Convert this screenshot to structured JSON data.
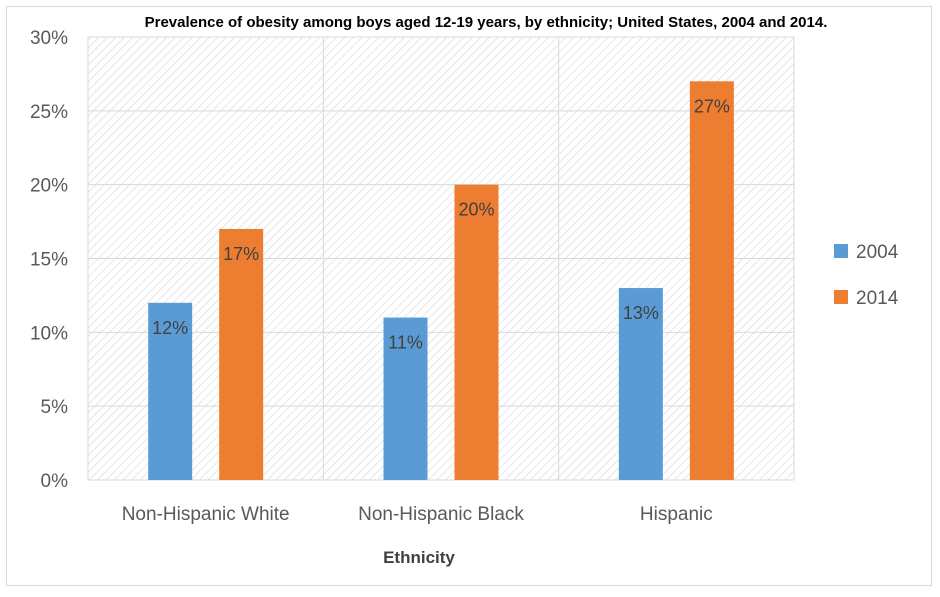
{
  "chart_data": {
    "type": "bar",
    "title": "Prevalence of obesity among boys aged 12-19 years, by ethnicity; United States, 2004 and 2014.",
    "xlabel": "Ethnicity",
    "ylabel": "",
    "categories": [
      "Non-Hispanic White",
      "Non-Hispanic Black",
      "Hispanic"
    ],
    "series": [
      {
        "name": "2004",
        "values": [
          12,
          11,
          13
        ],
        "labels": [
          "12%",
          "11%",
          "13%"
        ],
        "color": "#5b9bd5"
      },
      {
        "name": "2014",
        "values": [
          17,
          20,
          27
        ],
        "labels": [
          "17%",
          "20%",
          "27%"
        ],
        "color": "#ed7d31"
      }
    ],
    "ylim": [
      0,
      30
    ],
    "yticks": [
      0,
      5,
      10,
      15,
      20,
      25,
      30
    ],
    "ytick_labels": [
      "0%",
      "5%",
      "10%",
      "15%",
      "20%",
      "25%",
      "30%"
    ],
    "grid": true,
    "legend_position": "right"
  }
}
